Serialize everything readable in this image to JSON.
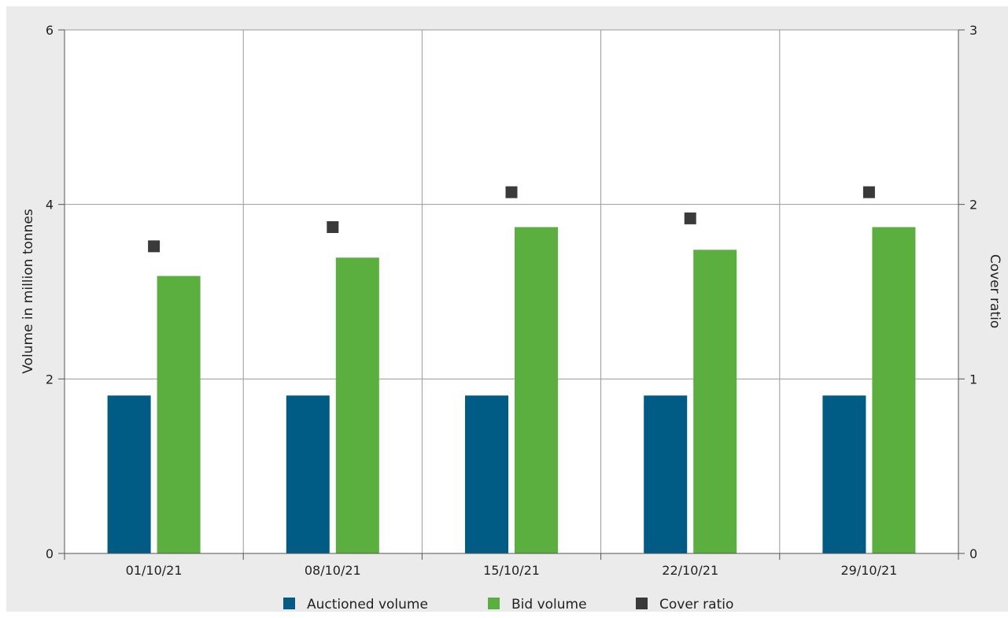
{
  "chart_data": {
    "type": "bar",
    "categories": [
      "01/10/21",
      "08/10/21",
      "15/10/21",
      "22/10/21",
      "29/10/21"
    ],
    "series": [
      {
        "name": "Auctioned volume",
        "axis": "left",
        "kind": "bar",
        "color": "#005c84",
        "values": [
          1.81,
          1.81,
          1.81,
          1.81,
          1.81
        ]
      },
      {
        "name": "Bid volume",
        "axis": "left",
        "kind": "bar",
        "color": "#5aaf3e",
        "values": [
          3.18,
          3.39,
          3.74,
          3.48,
          3.74
        ]
      },
      {
        "name": "Cover ratio",
        "axis": "right",
        "kind": "marker",
        "color": "#3a3a3a",
        "values": [
          1.76,
          1.87,
          2.07,
          1.92,
          2.07
        ]
      }
    ],
    "ylabel": "Volume in million tonnes",
    "ylabel_right": "Cover ratio",
    "ylim": [
      0,
      6
    ],
    "ylim_right": [
      0,
      3
    ],
    "yticks": [
      "0",
      "2",
      "4",
      "6"
    ],
    "yticks_right": [
      "0",
      "1",
      "2",
      "3"
    ],
    "grid": true,
    "legend_position": "bottom"
  }
}
